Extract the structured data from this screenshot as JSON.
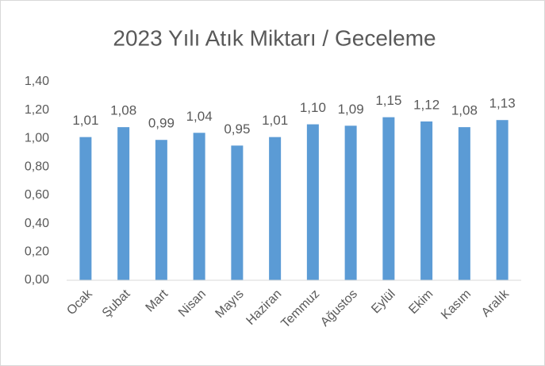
{
  "chart_data": {
    "type": "bar",
    "title": "2023 Yılı Atık Miktarı / Geceleme",
    "categories": [
      "Ocak",
      "Şubat",
      "Mart",
      "Nisan",
      "Mayıs",
      "Haziran",
      "Temmuz",
      "Ağustos",
      "Eylül",
      "Ekim",
      "Kasım",
      "Aralık"
    ],
    "values": [
      1.01,
      1.08,
      0.99,
      1.04,
      0.95,
      1.01,
      1.1,
      1.09,
      1.15,
      1.12,
      1.08,
      1.13
    ],
    "value_labels": [
      "1,01",
      "1,08",
      "0,99",
      "1,04",
      "0,95",
      "1,01",
      "1,10",
      "1,09",
      "1,15",
      "1,12",
      "1,08",
      "1,13"
    ],
    "color": "#5b9bd5",
    "ylim": [
      0,
      1.4
    ],
    "yticks": [
      {
        "value": 0,
        "label": "0,00"
      },
      {
        "value": 0.2,
        "label": "0,20"
      },
      {
        "value": 0.4,
        "label": "0,40"
      },
      {
        "value": 0.6,
        "label": "0,60"
      },
      {
        "value": 0.8,
        "label": "0,80"
      },
      {
        "value": 1.0,
        "label": "1,00"
      },
      {
        "value": 1.2,
        "label": "1,20"
      },
      {
        "value": 1.4,
        "label": "1,40"
      }
    ],
    "grid": false
  }
}
